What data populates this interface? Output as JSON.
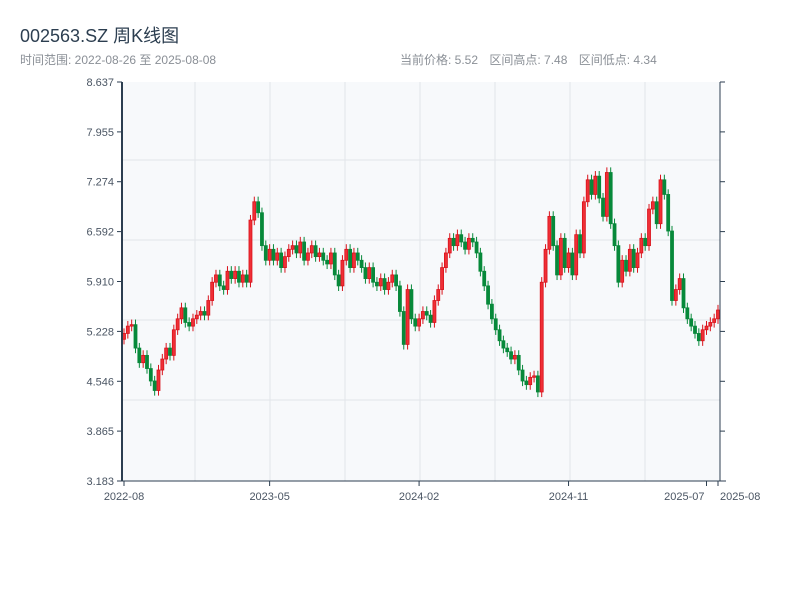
{
  "header": {
    "title": "002563.SZ 周K线图",
    "range_label": "时间范围: 2022-08-26 至 2025-08-08",
    "current_price": "当前价格: 5.52",
    "range_high": "区间高点: 7.48",
    "range_low": "区间低点: 4.34"
  },
  "colors": {
    "up": "#d9121b",
    "up_fill": "#ef2f36",
    "down": "#07893a",
    "plot_bg": "#f7f9fb",
    "grid": "#e2e5ea",
    "axis": "#2c3e50"
  },
  "chart_data": {
    "type": "candlestick",
    "title": "002563.SZ 周K线图",
    "ylim": [
      3.183,
      8.637
    ],
    "y_ticks": [
      "3.183",
      "3.865",
      "4.546",
      "5.228",
      "5.910",
      "6.592",
      "7.274",
      "7.955",
      "8.637"
    ],
    "x_ticks": [
      {
        "label": "2022-08",
        "week": 0
      },
      {
        "label": "2023-05",
        "week": 38
      },
      {
        "label": "2024-02",
        "week": 77
      },
      {
        "label": "2024-11",
        "week": 116
      },
      {
        "label": "2025-07",
        "week": 152
      },
      {
        "label": "2025-08",
        "week": 155
      }
    ],
    "wick": 0.07,
    "open": [
      5.12,
      5.2,
      5.3,
      5.32,
      5.0,
      4.8,
      4.9,
      4.72,
      4.55,
      4.42,
      4.7,
      4.85,
      5.0,
      4.9,
      5.25,
      5.4,
      5.55,
      5.35,
      5.3,
      5.4,
      5.45,
      5.5,
      5.45,
      5.65,
      5.9,
      6.0,
      5.85,
      5.8,
      6.05,
      5.95,
      6.05,
      5.9,
      6.0,
      5.9,
      6.75,
      7.0,
      6.85,
      6.4,
      6.2,
      6.35,
      6.2,
      6.3,
      6.1,
      6.25,
      6.35,
      6.4,
      6.3,
      6.45,
      6.2,
      6.3,
      6.4,
      6.25,
      6.3,
      6.2,
      6.15,
      6.3,
      6.0,
      5.85,
      6.2,
      6.35,
      6.1,
      6.3,
      6.2,
      6.1,
      5.95,
      6.1,
      5.9,
      5.85,
      5.95,
      5.8,
      5.9,
      6.0,
      5.85,
      5.5,
      5.05,
      5.8,
      5.4,
      5.3,
      5.4,
      5.5,
      5.45,
      5.35,
      5.65,
      5.8,
      6.1,
      6.3,
      6.5,
      6.4,
      6.55,
      6.45,
      6.35,
      6.5,
      6.45,
      6.3,
      6.05,
      5.85,
      5.6,
      5.4,
      5.25,
      5.1,
      5.0,
      4.95,
      4.85,
      4.9,
      4.7,
      4.55,
      4.5,
      4.6,
      4.62,
      4.4,
      5.9,
      6.35,
      6.8,
      6.4,
      6.0,
      6.5,
      6.1,
      6.3,
      6.0,
      6.55,
      6.3,
      7.0,
      7.3,
      7.1,
      7.35,
      7.05,
      6.8,
      7.4,
      6.7,
      6.4,
      5.9,
      6.2,
      6.05,
      6.35,
      6.1,
      6.3,
      6.5,
      6.4,
      6.9,
      7.0,
      6.7,
      7.3,
      7.1,
      6.6,
      5.65,
      5.8,
      5.95,
      5.55,
      5.4,
      5.3,
      5.2,
      5.1,
      5.25,
      5.3,
      5.35,
      5.4
    ],
    "close": [
      5.2,
      5.3,
      5.32,
      5.0,
      4.8,
      4.9,
      4.72,
      4.55,
      4.42,
      4.7,
      4.85,
      5.0,
      4.9,
      5.25,
      5.4,
      5.55,
      5.35,
      5.3,
      5.4,
      5.45,
      5.5,
      5.45,
      5.65,
      5.9,
      6.0,
      5.85,
      5.8,
      6.05,
      5.95,
      6.05,
      5.9,
      6.0,
      5.9,
      6.75,
      7.0,
      6.85,
      6.4,
      6.2,
      6.35,
      6.2,
      6.3,
      6.1,
      6.25,
      6.35,
      6.4,
      6.3,
      6.45,
      6.2,
      6.3,
      6.4,
      6.25,
      6.3,
      6.2,
      6.15,
      6.3,
      6.0,
      5.85,
      6.2,
      6.35,
      6.1,
      6.3,
      6.2,
      6.1,
      5.95,
      6.1,
      5.9,
      5.85,
      5.95,
      5.8,
      5.9,
      6.0,
      5.85,
      5.5,
      5.05,
      5.8,
      5.4,
      5.3,
      5.4,
      5.5,
      5.45,
      5.35,
      5.65,
      5.8,
      6.1,
      6.3,
      6.5,
      6.4,
      6.55,
      6.45,
      6.35,
      6.5,
      6.45,
      6.3,
      6.05,
      5.85,
      5.6,
      5.4,
      5.25,
      5.1,
      5.0,
      4.95,
      4.85,
      4.9,
      4.7,
      4.55,
      4.5,
      4.6,
      4.62,
      4.4,
      5.9,
      6.35,
      6.8,
      6.4,
      6.0,
      6.5,
      6.1,
      6.3,
      6.0,
      6.55,
      6.3,
      7.0,
      7.3,
      7.1,
      7.35,
      7.05,
      6.8,
      7.4,
      6.7,
      6.4,
      5.9,
      6.2,
      6.05,
      6.35,
      6.1,
      6.3,
      6.5,
      6.4,
      6.9,
      7.0,
      6.7,
      7.3,
      7.1,
      6.6,
      5.65,
      5.8,
      5.95,
      5.55,
      5.4,
      5.3,
      5.2,
      5.1,
      5.25,
      5.3,
      5.35,
      5.4,
      5.52
    ]
  }
}
